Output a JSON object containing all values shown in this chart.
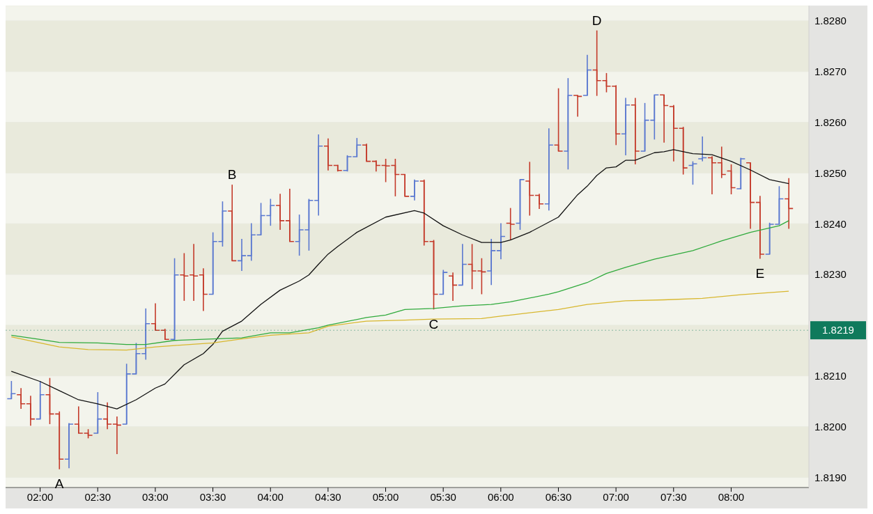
{
  "chart_data": {
    "type": "candlestick",
    "x": [
      1.75,
      1.8333,
      1.9167,
      2,
      2.0833,
      2.1667,
      2.25,
      2.3333,
      2.4167,
      2.5,
      2.5833,
      2.6667,
      2.75,
      2.8333,
      2.9167,
      3,
      3.0833,
      3.1667,
      3.25,
      3.3333,
      3.4167,
      3.5,
      3.5833,
      3.6667,
      3.75,
      3.8333,
      3.9167,
      4,
      4.0833,
      4.1667,
      4.25,
      4.3333,
      4.4167,
      4.5,
      4.5833,
      4.6667,
      4.75,
      4.8333,
      4.9167,
      5,
      5.0833,
      5.1667,
      5.25,
      5.3333,
      5.4167,
      5.5,
      5.5833,
      5.6667,
      5.75,
      5.8333,
      5.9167,
      6,
      6.0833,
      6.1667,
      6.25,
      6.3333,
      6.4167,
      6.5,
      6.5833,
      6.6667,
      6.75,
      6.8333,
      6.9167,
      7,
      7.0833,
      7.1667,
      7.25,
      7.3333,
      7.4167,
      7.5,
      7.5833,
      7.6667,
      7.75,
      7.8333,
      7.9167,
      8,
      8.0833,
      8.1667,
      8.25,
      8.3333,
      8.4167,
      8.5
    ],
    "ohlc": [
      [
        1.82055,
        1.8209,
        1.82055,
        1.82065
      ],
      [
        1.82063,
        1.82076,
        1.82035,
        1.82045
      ],
      [
        1.82045,
        1.82061,
        1.82002,
        1.82015
      ],
      [
        1.82015,
        1.8209,
        1.82015,
        1.82063
      ],
      [
        1.82063,
        1.82096,
        1.82005,
        1.82025
      ],
      [
        1.82025,
        1.8203,
        1.81916,
        1.81936
      ],
      [
        1.81936,
        1.82007,
        1.81918,
        1.82005
      ],
      [
        1.82005,
        1.8204,
        1.81987,
        1.81987
      ],
      [
        1.81987,
        1.81995,
        1.81977,
        1.81983
      ],
      [
        1.81987,
        1.82068,
        1.81987,
        1.82015
      ],
      [
        1.82015,
        1.82048,
        1.81995,
        1.82005
      ],
      [
        1.82005,
        1.8202,
        1.81946,
        1.82003
      ],
      [
        1.82005,
        1.82124,
        1.82005,
        1.82104
      ],
      [
        1.82104,
        1.82165,
        1.82104,
        1.82144
      ],
      [
        1.82144,
        1.82233,
        1.82132,
        1.82203
      ],
      [
        1.82203,
        1.82243,
        1.8219,
        1.8219
      ],
      [
        1.8219,
        1.82193,
        1.82172,
        1.82172
      ],
      [
        1.82172,
        1.82332,
        1.82172,
        1.82299
      ],
      [
        1.82299,
        1.82342,
        1.82248,
        1.82297
      ],
      [
        1.82299,
        1.8236,
        1.82248,
        1.82297
      ],
      [
        1.82299,
        1.82312,
        1.82228,
        1.82261
      ],
      [
        1.82261,
        1.82383,
        1.82261,
        1.82365
      ],
      [
        1.82365,
        1.82444,
        1.82355,
        1.82425
      ],
      [
        1.82425,
        1.82477,
        1.82327,
        1.82327
      ],
      [
        1.82327,
        1.8237,
        1.82307,
        1.82337
      ],
      [
        1.82337,
        1.82401,
        1.82327,
        1.82378
      ],
      [
        1.82378,
        1.82441,
        1.82378,
        1.82416
      ],
      [
        1.82416,
        1.82449,
        1.82396,
        1.82436
      ],
      [
        1.82436,
        1.82459,
        1.82388,
        1.82406
      ],
      [
        1.82406,
        1.82469,
        1.82365,
        1.82365
      ],
      [
        1.82365,
        1.82418,
        1.82337,
        1.82388
      ],
      [
        1.82388,
        1.82449,
        1.82347,
        1.82446
      ],
      [
        1.82446,
        1.82576,
        1.82416,
        1.82553
      ],
      [
        1.82553,
        1.82568,
        1.82505,
        1.82515
      ],
      [
        1.82515,
        1.82516,
        1.82503,
        1.82505
      ],
      [
        1.82505,
        1.82535,
        1.82503,
        1.82532
      ],
      [
        1.82532,
        1.82569,
        1.82532,
        1.82555
      ],
      [
        1.82555,
        1.82558,
        1.82523,
        1.82523
      ],
      [
        1.82523,
        1.82525,
        1.82503,
        1.82515
      ],
      [
        1.82515,
        1.82528,
        1.82482,
        1.82514
      ],
      [
        1.82515,
        1.82528,
        1.82454,
        1.82497
      ],
      [
        1.82497,
        1.82497,
        1.82454,
        1.82454
      ],
      [
        1.82454,
        1.82487,
        1.82446,
        1.82484
      ],
      [
        1.82484,
        1.82487,
        1.82357,
        1.82365
      ],
      [
        1.82365,
        1.82368,
        1.82231,
        1.82261
      ],
      [
        1.82261,
        1.82309,
        1.82261,
        1.82304
      ],
      [
        1.82297,
        1.82304,
        1.82248,
        1.82279
      ],
      [
        1.82279,
        1.8236,
        1.82279,
        1.8232
      ],
      [
        1.8232,
        1.8236,
        1.82271,
        1.82307
      ],
      [
        1.82307,
        1.82332,
        1.82261,
        1.82305
      ],
      [
        1.82307,
        1.8237,
        1.82279,
        1.82347
      ],
      [
        1.82347,
        1.82401,
        1.8233,
        1.82375
      ],
      [
        1.82401,
        1.82431,
        1.82368,
        1.82399
      ],
      [
        1.82401,
        1.82487,
        1.82388,
        1.82487
      ],
      [
        1.82484,
        1.82522,
        1.82416,
        1.82456
      ],
      [
        1.82456,
        1.82459,
        1.82429,
        1.82439
      ],
      [
        1.82439,
        1.82588,
        1.82426,
        1.82555
      ],
      [
        1.82555,
        1.82667,
        1.82543,
        1.82543
      ],
      [
        1.82543,
        1.82687,
        1.82507,
        1.82653
      ],
      [
        1.82653,
        1.82653,
        1.82611,
        1.82651
      ],
      [
        1.82653,
        1.82733,
        1.82653,
        1.82703
      ],
      [
        1.82703,
        1.82781,
        1.82652,
        1.82682
      ],
      [
        1.82682,
        1.82697,
        1.82659,
        1.82671
      ],
      [
        1.82671,
        1.82673,
        1.82555,
        1.82577
      ],
      [
        1.82577,
        1.82648,
        1.82535,
        1.82634
      ],
      [
        1.82634,
        1.82648,
        1.82517,
        1.82543
      ],
      [
        1.82543,
        1.82638,
        1.82543,
        1.82604
      ],
      [
        1.82604,
        1.82654,
        1.82566,
        1.82654
      ],
      [
        1.82654,
        1.82654,
        1.8256,
        1.82633
      ],
      [
        1.82631,
        1.82634,
        1.82523,
        1.82588
      ],
      [
        1.82588,
        1.82591,
        1.82497,
        1.8251
      ],
      [
        1.82515,
        1.82523,
        1.82477,
        1.82518
      ],
      [
        1.82528,
        1.82572,
        1.82523,
        1.8253
      ],
      [
        1.8253,
        1.82533,
        1.82458,
        1.8252
      ],
      [
        1.8252,
        1.82552,
        1.8249,
        1.82497
      ],
      [
        1.82504,
        1.82517,
        1.82458,
        1.82471
      ],
      [
        1.82469,
        1.8253,
        1.82468,
        1.82528
      ],
      [
        1.8252,
        1.8252,
        1.8239,
        1.82442
      ],
      [
        1.82442,
        1.82455,
        1.82331,
        1.8234
      ],
      [
        1.8234,
        1.82402,
        1.8234,
        1.82399
      ],
      [
        1.82399,
        1.82474,
        1.82399,
        1.82449
      ],
      [
        1.82449,
        1.8249,
        1.8239,
        1.8243
      ]
    ],
    "colors": [
      "#5a78d0",
      "#c43a2a",
      "#c43a2a",
      "#5a78d0",
      "#c43a2a",
      "#c43a2a",
      "#5a78d0",
      "#c43a2a",
      "#c43a2a",
      "#5a78d0",
      "#c43a2a",
      "#c43a2a",
      "#5a78d0",
      "#5a78d0",
      "#5a78d0",
      "#c43a2a",
      "#c43a2a",
      "#5a78d0",
      "#c43a2a",
      "#c43a2a",
      "#c43a2a",
      "#5a78d0",
      "#5a78d0",
      "#c43a2a",
      "#5a78d0",
      "#5a78d0",
      "#5a78d0",
      "#5a78d0",
      "#c43a2a",
      "#c43a2a",
      "#5a78d0",
      "#5a78d0",
      "#5a78d0",
      "#c43a2a",
      "#c43a2a",
      "#5a78d0",
      "#5a78d0",
      "#c43a2a",
      "#c43a2a",
      "#c43a2a",
      "#c43a2a",
      "#c43a2a",
      "#5a78d0",
      "#c43a2a",
      "#c43a2a",
      "#5a78d0",
      "#c43a2a",
      "#5a78d0",
      "#c43a2a",
      "#c43a2a",
      "#5a78d0",
      "#5a78d0",
      "#c43a2a",
      "#5a78d0",
      "#c43a2a",
      "#c43a2a",
      "#5a78d0",
      "#c43a2a",
      "#5a78d0",
      "#c43a2a",
      "#5a78d0",
      "#c43a2a",
      "#c43a2a",
      "#c43a2a",
      "#5a78d0",
      "#c43a2a",
      "#5a78d0",
      "#5a78d0",
      "#c43a2a",
      "#c43a2a",
      "#c43a2a",
      "#5a78d0",
      "#5a78d0",
      "#c43a2a",
      "#c43a2a",
      "#c43a2a",
      "#5a78d0",
      "#c43a2a",
      "#c43a2a",
      "#5a78d0",
      "#5a78d0",
      "#c43a2a"
    ],
    "series": [
      {
        "type": "line",
        "color": "#111111",
        "x": [
          1.75,
          2,
          2.1667,
          2.3333,
          2.5,
          2.6667,
          2.8333,
          3,
          3.0833,
          3.25,
          3.4167,
          3.5,
          3.5833,
          3.75,
          3.9167,
          4.0833,
          4.25,
          4.3333,
          4.4167,
          4.5,
          4.5833,
          4.75,
          5,
          5.25,
          5.3333,
          5.5,
          5.6667,
          5.8333,
          6,
          6.0833,
          6.25,
          6.4167,
          6.5,
          6.6667,
          6.75,
          6.8333,
          6.9167,
          7,
          7.0833,
          7.1667,
          7.3333,
          7.4167,
          7.5,
          7.6667,
          7.8333,
          8,
          8.1667,
          8.3333,
          8.5
        ],
        "values": [
          1.82109,
          1.82089,
          1.82071,
          1.82053,
          1.82045,
          1.82035,
          1.82053,
          1.82076,
          1.82084,
          1.82122,
          1.82144,
          1.82162,
          1.82188,
          1.82208,
          1.82241,
          1.82269,
          1.82287,
          1.82299,
          1.8232,
          1.8234,
          1.82355,
          1.82383,
          1.82413,
          1.82426,
          1.82421,
          1.82396,
          1.82378,
          1.82363,
          1.82363,
          1.82368,
          1.82383,
          1.82403,
          1.82413,
          1.82457,
          1.82474,
          1.82495,
          1.8251,
          1.82512,
          1.82525,
          1.82525,
          1.8254,
          1.82542,
          1.82546,
          1.82538,
          1.82536,
          1.82523,
          1.82506,
          1.82487,
          1.82479
        ]
      },
      {
        "type": "line",
        "color": "#2faa3c",
        "x": [
          1.75,
          2,
          2.1667,
          2.5,
          2.75,
          2.9167,
          3.1667,
          3.5,
          3.75,
          4,
          4.1667,
          4.4167,
          4.5,
          4.8333,
          5,
          5.1667,
          5.4167,
          5.6667,
          5.9167,
          6.0833,
          6.4167,
          6.5,
          6.75,
          6.9167,
          7.0833,
          7.3333,
          7.6667,
          7.9167,
          8.1667,
          8.4167,
          8.5
        ],
        "values": [
          1.8218,
          1.82172,
          1.82166,
          1.82165,
          1.82162,
          1.82162,
          1.8217,
          1.82173,
          1.82175,
          1.82185,
          1.82185,
          1.82195,
          1.822,
          1.82215,
          1.8222,
          1.82231,
          1.82233,
          1.82238,
          1.82241,
          1.82246,
          1.82261,
          1.82266,
          1.82284,
          1.82302,
          1.82314,
          1.8233,
          1.82347,
          1.82366,
          1.82383,
          1.82396,
          1.82406
        ]
      },
      {
        "type": "line",
        "color": "#d8b72e",
        "x": [
          1.75,
          2,
          2.1667,
          2.4167,
          2.75,
          3,
          3.1667,
          3.5,
          3.75,
          4,
          4.3333,
          4.5,
          4.8333,
          5.1667,
          5.4167,
          5.8333,
          6,
          6.0833,
          6.5,
          6.75,
          7.0833,
          7.4167,
          7.75,
          8.0833,
          8.5
        ],
        "values": [
          1.82177,
          1.82165,
          1.82157,
          1.82152,
          1.82151,
          1.82157,
          1.8216,
          1.82165,
          1.82173,
          1.8218,
          1.82185,
          1.82198,
          1.82208,
          1.8221,
          1.82212,
          1.82213,
          1.82218,
          1.8222,
          1.82231,
          1.82241,
          1.82248,
          1.8225,
          1.82253,
          1.8226,
          1.82267
        ]
      }
    ],
    "xlim": [
      1.7,
      8.675
    ],
    "xticks": [
      {
        "value": 2,
        "label": "02:00"
      },
      {
        "value": 2.5,
        "label": "02:30"
      },
      {
        "value": 3,
        "label": "03:00"
      },
      {
        "value": 3.5,
        "label": "03:30"
      },
      {
        "value": 4,
        "label": "04:00"
      },
      {
        "value": 4.5,
        "label": "04:30"
      },
      {
        "value": 5,
        "label": "05:00"
      },
      {
        "value": 5.5,
        "label": "05:30"
      },
      {
        "value": 6,
        "label": "06:00"
      },
      {
        "value": 6.5,
        "label": "06:30"
      },
      {
        "value": 7,
        "label": "07:00"
      },
      {
        "value": 7.5,
        "label": "07:30"
      },
      {
        "value": 8,
        "label": "08:00"
      }
    ],
    "ylim": [
      1.8188,
      1.8283
    ],
    "yticks": [
      {
        "value": 1.819,
        "label": "1.8190"
      },
      {
        "value": 1.82,
        "label": "1.8200"
      },
      {
        "value": 1.821,
        "label": "1.8210"
      },
      {
        "value": 1.822,
        "label": null
      },
      {
        "value": 1.823,
        "label": "1.8230"
      },
      {
        "value": 1.824,
        "label": "1.8240"
      },
      {
        "value": 1.825,
        "label": "1.8250"
      },
      {
        "value": 1.826,
        "label": "1.8260"
      },
      {
        "value": 1.827,
        "label": "1.8270"
      },
      {
        "value": 1.828,
        "label": "1.8280"
      }
    ],
    "grid": "y",
    "ref_lines": [
      {
        "axis": "y",
        "value": 1.8219,
        "label": "1.8219",
        "color": "#0f7a5c"
      }
    ],
    "annotations": [
      {
        "text": "A",
        "x": 2.1667,
        "y": 1.81916
      },
      {
        "text": "B",
        "x": 3.6667,
        "y": 1.82477
      },
      {
        "text": "C",
        "x": 5.4167,
        "y": 1.82231
      },
      {
        "text": "D",
        "x": 6.8333,
        "y": 1.82781
      },
      {
        "text": "E",
        "x": 8.25,
        "y": 1.82331
      }
    ]
  }
}
